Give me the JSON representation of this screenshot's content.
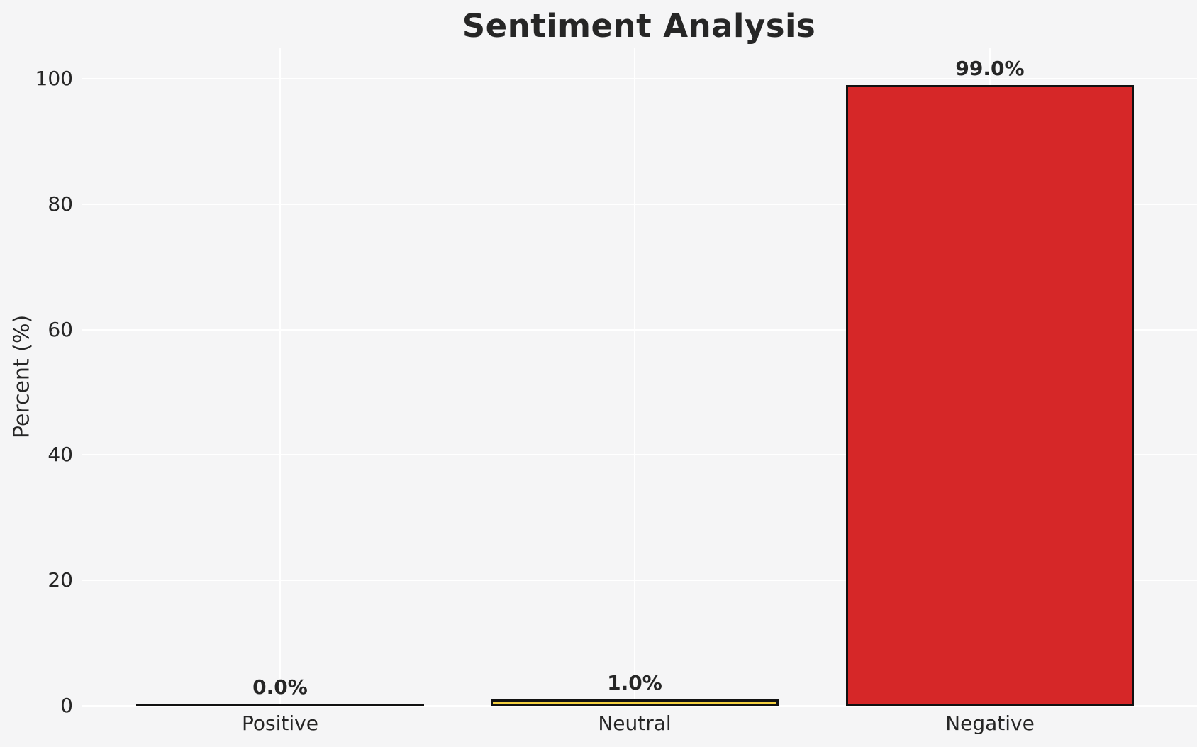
{
  "figure": {
    "background_color": "#f5f5f6",
    "text_color": "#262626",
    "gridline_color": "#ffffff"
  },
  "chart_data": {
    "type": "bar",
    "title": "Sentiment Analysis",
    "ylabel": "Percent (%)",
    "categories": [
      "Positive",
      "Neutral",
      "Negative"
    ],
    "values": [
      0.0,
      1.0,
      99.0
    ],
    "bar_value_labels": [
      "0.0%",
      "1.0%",
      "99.0%"
    ],
    "bar_fill_colors": [
      null,
      "#f4d03f",
      "#d62728"
    ],
    "bar_edge_color": "#111111",
    "ylim": [
      0,
      105
    ],
    "yticks": [
      0,
      20,
      40,
      60,
      80,
      100
    ],
    "ytick_labels": [
      "0",
      "20",
      "40",
      "60",
      "80",
      "100"
    ],
    "grid": "on",
    "legend_position": "none"
  }
}
